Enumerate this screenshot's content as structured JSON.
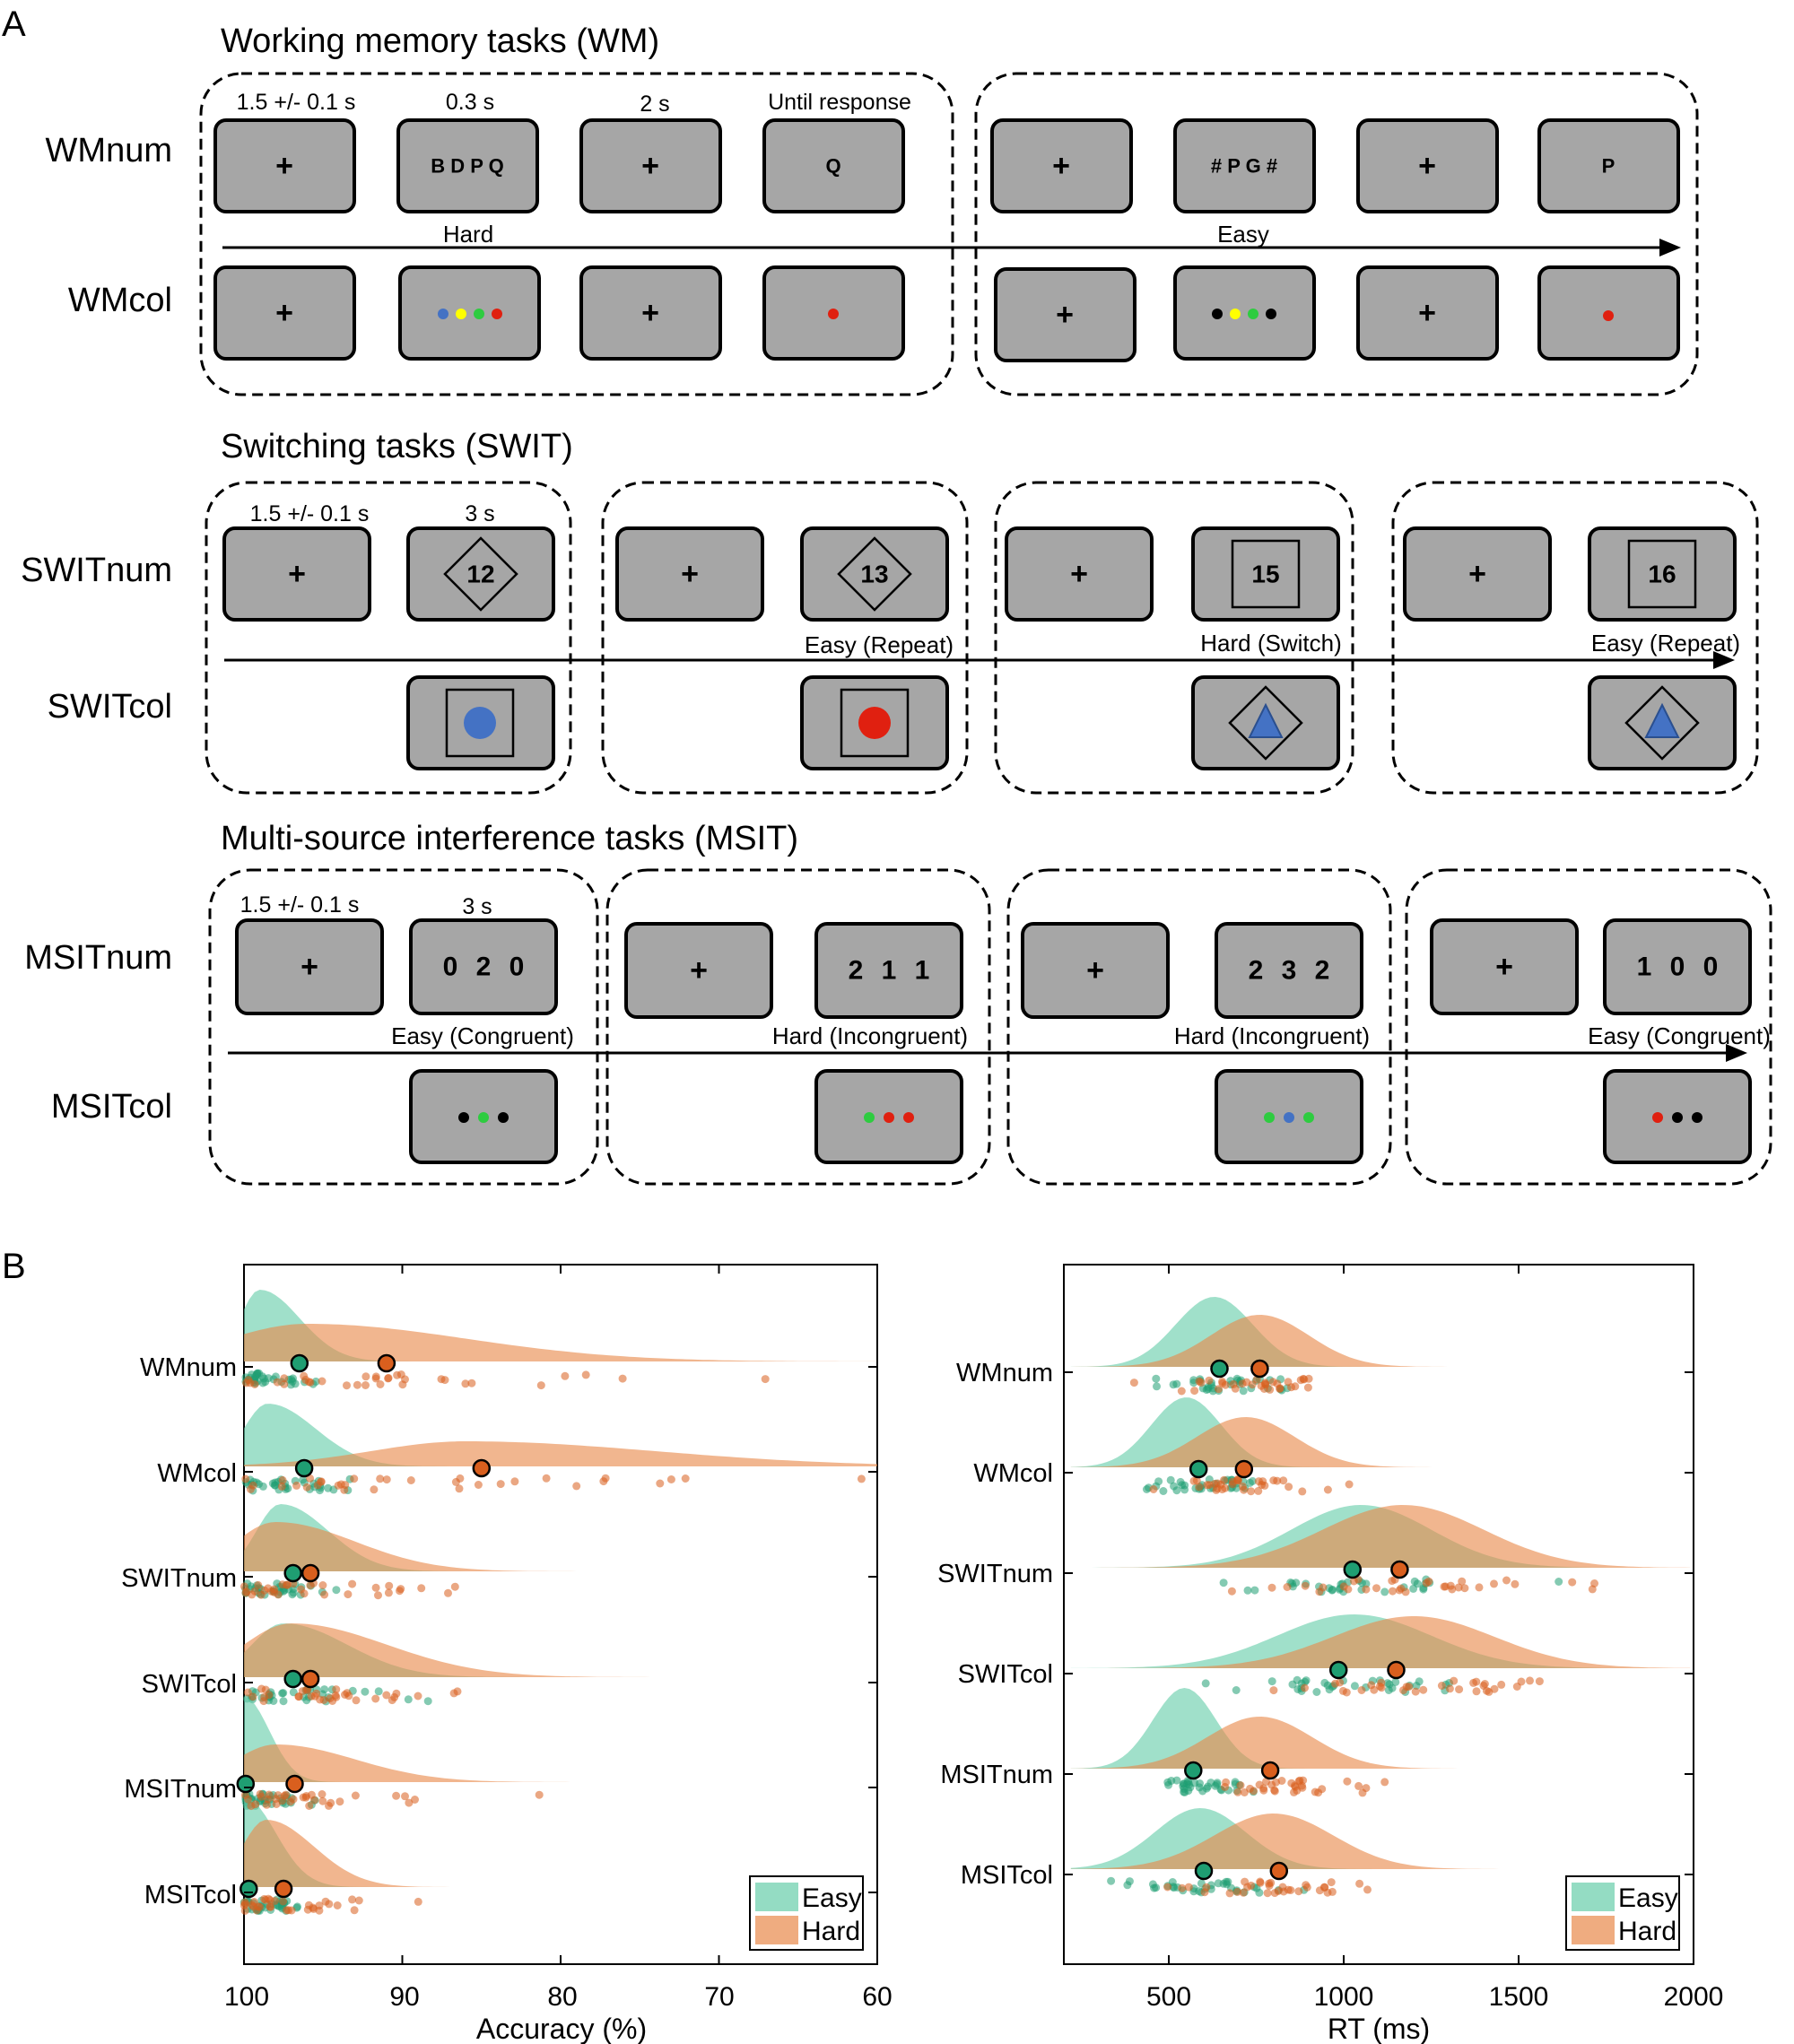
{
  "panelA": {
    "letter": "A",
    "sections": [
      {
        "id": "wm",
        "title": "Working memory tasks (WM)",
        "rows": [
          "WMnum",
          "WMcol"
        ],
        "times": [
          "1.5 +/- 0.1 s",
          "0.3 s",
          "2 s",
          "Until response"
        ],
        "conditions": [
          "Hard",
          "Easy"
        ],
        "num_stimuli": [
          "+",
          "B D P Q",
          "+",
          "Q",
          "+",
          "# P G #",
          "+",
          "P"
        ]
      },
      {
        "id": "swit",
        "title": "Switching tasks (SWIT)",
        "rows": [
          "SWITnum",
          "SWITcol"
        ],
        "times": [
          "1.5 +/- 0.1 s",
          "3 s"
        ],
        "conditions": [
          "Easy (Repeat)",
          "Hard (Switch)",
          "Easy (Repeat)"
        ],
        "numbers": [
          "12",
          "13",
          "15",
          "16"
        ]
      },
      {
        "id": "msit",
        "title": "Multi-source interference tasks (MSIT)",
        "rows": [
          "MSITnum",
          "MSITcol"
        ],
        "times": [
          "1.5 +/- 0.1 s",
          "3 s"
        ],
        "conditions": [
          "Easy (Congruent)",
          "Hard (Incongruent)",
          "Hard (Incongruent)",
          "Easy (Congruent)"
        ],
        "numbers": [
          "0 2 0",
          "2 1 1",
          "2 3 2",
          "1 0 0"
        ]
      }
    ],
    "colors": {
      "blue": "#4472c4",
      "yellow": "#ffff00",
      "green": "#2ecc40",
      "red": "#e02010",
      "black": "#000000",
      "screen": "#a6a6a6"
    }
  },
  "panelB": {
    "letter": "B",
    "colors": {
      "easy": "#66cdaa",
      "hard": "#e8894a",
      "easy_dot": "#1f9e72",
      "hard_dot": "#d95f1e"
    },
    "chart_data": [
      {
        "type": "scatter",
        "xlabel": "Accuracy (%)",
        "xlim": [
          100,
          60
        ],
        "xticks": [
          "100",
          "90",
          "80",
          "70",
          "60"
        ],
        "categories": [
          "WMnum",
          "WMcol",
          "SWITnum",
          "SWITcol",
          "MSITnum",
          "MSITcol"
        ],
        "legend": [
          "Easy",
          "Hard"
        ],
        "legend_position": "bottom-right",
        "series": [
          {
            "name": "Easy",
            "means": [
              96.5,
              96.2,
              96.9,
              96.9,
              99.9,
              99.7
            ]
          },
          {
            "name": "Hard",
            "means": [
              91.0,
              85.0,
              95.8,
              95.8,
              96.8,
              97.5
            ]
          }
        ]
      },
      {
        "type": "scatter",
        "xlabel": "RT (ms)",
        "xlim": [
          200,
          2000
        ],
        "xticks": [
          "500",
          "1000",
          "1500",
          "2000"
        ],
        "categories": [
          "WMnum",
          "WMcol",
          "SWITnum",
          "SWITcol",
          "MSITnum",
          "MSITcol"
        ],
        "legend": [
          "Easy",
          "Hard"
        ],
        "legend_position": "bottom-right",
        "series": [
          {
            "name": "Easy",
            "means": [
              645,
              585,
              1025,
              985,
              570,
              600
            ]
          },
          {
            "name": "Hard",
            "means": [
              760,
              715,
              1160,
              1150,
              790,
              815
            ]
          }
        ]
      }
    ]
  }
}
